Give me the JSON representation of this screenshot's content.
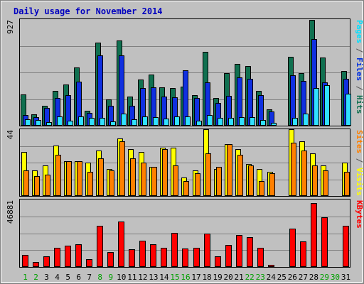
{
  "chart_data": {
    "type": "bar",
    "title": "Daily usage for November 2014",
    "categories": [
      "1",
      "2",
      "3",
      "4",
      "5",
      "6",
      "7",
      "8",
      "9",
      "10",
      "11",
      "12",
      "13",
      "14",
      "15",
      "16",
      "17",
      "18",
      "19",
      "20",
      "21",
      "22",
      "23",
      "24",
      "25",
      "26",
      "27",
      "28",
      "29",
      "30",
      "31"
    ],
    "weekend_days": [
      "1",
      "2",
      "8",
      "9",
      "15",
      "16",
      "22",
      "23",
      "29",
      "30"
    ],
    "panels": [
      {
        "name": "hits-files-pages",
        "ymax_label": "927",
        "ymax": 927,
        "side_labels": [
          {
            "text": "Pages",
            "color": "#00e0ff"
          },
          {
            "text": " / ",
            "color": "#555555"
          },
          {
            "text": "Files",
            "color": "#0030e0"
          },
          {
            "text": " / ",
            "color": "#555555"
          },
          {
            "text": "Hits",
            "color": "#107050"
          }
        ],
        "series": [
          {
            "name": "Hits",
            "color": "#107050",
            "values": [
              270,
              100,
              175,
              300,
              360,
              505,
              130,
              725,
              230,
              740,
              255,
              400,
              445,
              335,
              330,
              340,
              265,
              645,
              240,
              455,
              540,
              520,
              305,
              140,
              0,
              600,
              455,
              920,
              595,
              0,
              475
            ]
          },
          {
            "name": "Files",
            "color": "#1030e0",
            "values": [
              90,
              75,
              155,
              240,
              265,
              385,
              110,
              610,
              175,
              610,
              175,
              330,
              335,
              255,
              245,
              485,
              240,
              380,
              200,
              260,
              420,
              410,
              265,
              125,
              0,
              436,
              390,
              752,
              380,
              0,
              410
            ]
          },
          {
            "name": "Pages",
            "color": "#30e0ff",
            "values": [
              55,
              52,
              30,
              80,
              45,
              80,
              65,
              68,
              40,
              105,
              55,
              80,
              75,
              62,
              80,
              82,
              42,
              92,
              65,
              70,
              75,
              75,
              50,
              27,
              0,
              65,
              102,
              330,
              350,
              0,
              280
            ]
          }
        ]
      },
      {
        "name": "visits-sites",
        "ymax_label": "44",
        "ymax": 44,
        "side_labels": [
          {
            "text": "Sites",
            "color": "#ff8000"
          },
          {
            "text": " / ",
            "color": "#555555"
          },
          {
            "text": "Visits",
            "color": "#ffff00"
          }
        ],
        "series": [
          {
            "name": "Visits",
            "color": "#ffff00",
            "values": [
              29,
              17,
              20,
              33,
              23,
              23,
              22,
              30,
              18,
              38,
              31,
              29,
              19,
              32,
              32,
              12,
              17,
              44,
              18,
              34,
              31,
              21,
              18,
              16,
              0,
              44,
              36,
              28,
              20,
              0,
              22
            ]
          },
          {
            "name": "Sites",
            "color": "#ff8000",
            "values": [
              17,
              13,
              14,
              27,
              23,
              23,
              16,
              25,
              17,
              36,
              25,
              22,
              19,
              31,
              20,
              10,
              15,
              28,
              19,
              34,
              27,
              20,
              10,
              15,
              0,
              35,
              30,
              20,
              17,
              0,
              16
            ]
          }
        ]
      },
      {
        "name": "kbytes",
        "ymax_label": "46881",
        "ymax": 46881,
        "side_labels": [
          {
            "text": "KBytes",
            "color": "#ff0000"
          }
        ],
        "series": [
          {
            "name": "KBytes",
            "color": "#ff0000",
            "values": [
              8500,
              3700,
              7600,
              13200,
              14600,
              15800,
              5400,
              28800,
              10200,
              31800,
              12300,
              18300,
              15600,
              13500,
              23500,
              12700,
              13300,
              23100,
              7200,
              15500,
              22000,
              20800,
              13300,
              1500,
              0,
              26500,
              17800,
              44300,
              34300,
              0,
              28700
            ]
          }
        ]
      }
    ]
  }
}
